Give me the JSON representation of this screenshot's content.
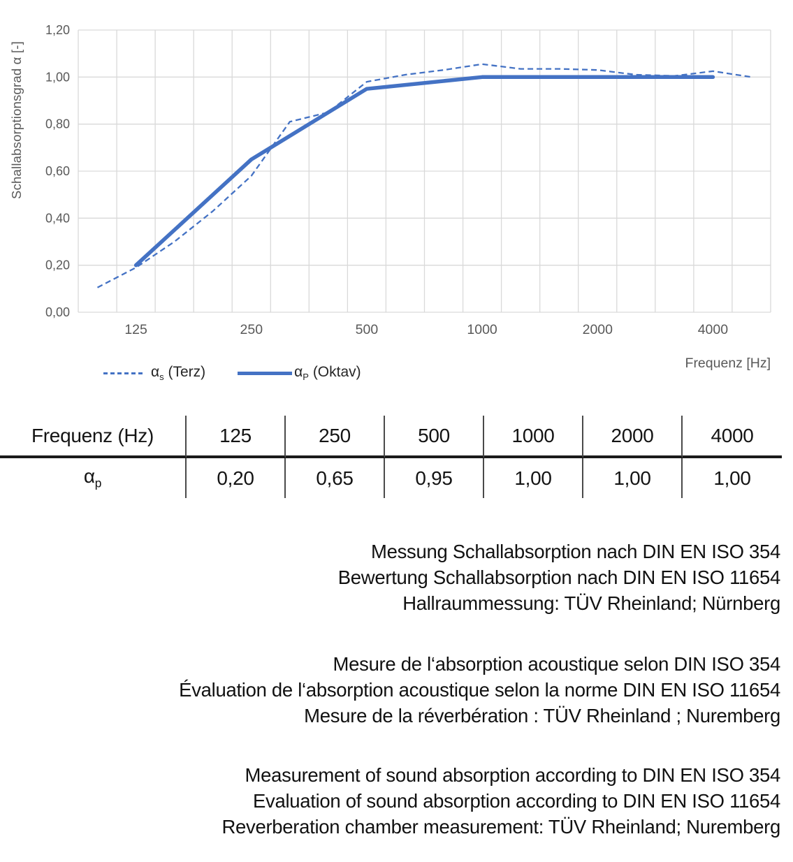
{
  "chart_data": {
    "type": "line",
    "x_categories": [
      100,
      125,
      160,
      200,
      250,
      315,
      400,
      500,
      630,
      800,
      1000,
      1250,
      1600,
      2000,
      2500,
      3150,
      4000,
      5000
    ],
    "xtick_labels": [
      "125",
      "250",
      "500",
      "1000",
      "2000",
      "4000"
    ],
    "xlabel": "Frequenz [Hz]",
    "ylabel": "Schallabsorptionsgrad α [-]",
    "ylim": [
      0,
      1.2
    ],
    "ytick_step": 0.2,
    "grid": true,
    "legend_position": "bottom-left",
    "line_color": "#4472C4",
    "gridline_color": "#D9D9D9",
    "series": [
      {
        "name": "αs (Terz)",
        "style": "dashed",
        "x": [
          100,
          125,
          160,
          200,
          250,
          315,
          400,
          500,
          630,
          800,
          1000,
          1250,
          1600,
          2000,
          2500,
          3150,
          4000,
          5000
        ],
        "values": [
          0.105,
          0.19,
          0.3,
          0.43,
          0.58,
          0.81,
          0.85,
          0.98,
          1.01,
          1.03,
          1.055,
          1.035,
          1.035,
          1.03,
          1.01,
          1.005,
          1.025,
          1.0
        ]
      },
      {
        "name": "αP (Oktav)",
        "style": "solid",
        "x": [
          125,
          250,
          500,
          1000,
          2000,
          4000
        ],
        "values": [
          0.2,
          0.65,
          0.95,
          1.0,
          1.0,
          1.0
        ]
      }
    ]
  },
  "legend": {
    "items": [
      {
        "alpha": "α",
        "sub": "s",
        "rest": " (Terz)"
      },
      {
        "alpha": "α",
        "sub": "P",
        "rest": " (Oktav)"
      }
    ]
  },
  "axis": {
    "x_title": "Frequenz [Hz]"
  },
  "table": {
    "header_label": "Frequenz (Hz)",
    "frequencies": [
      "125",
      "250",
      "500",
      "1000",
      "2000",
      "4000"
    ],
    "row_symbol": "α",
    "row_sub": "p",
    "values": [
      "0,20",
      "0,65",
      "0,95",
      "1,00",
      "1,00",
      "1,00"
    ]
  },
  "texts": {
    "de": [
      "Messung Schallabsorption nach DIN EN ISO 354",
      "Bewertung Schallabsorption nach DIN EN ISO 11654",
      "Hallraummessung: TÜV Rheinland; Nürnberg"
    ],
    "fr": [
      "Mesure de l‘absorption acoustique selon DIN ISO 354",
      "Évaluation de l‘absorption acoustique selon la norme DIN EN ISO 11654",
      "Mesure de la réverbération : TÜV Rheinland ; Nuremberg"
    ],
    "en": [
      "Measurement of sound absorption according to DIN EN ISO 354",
      "Evaluation of sound absorption according to DIN EN ISO 11654",
      "Reverberation chamber measurement: TÜV Rheinland; Nuremberg"
    ]
  }
}
